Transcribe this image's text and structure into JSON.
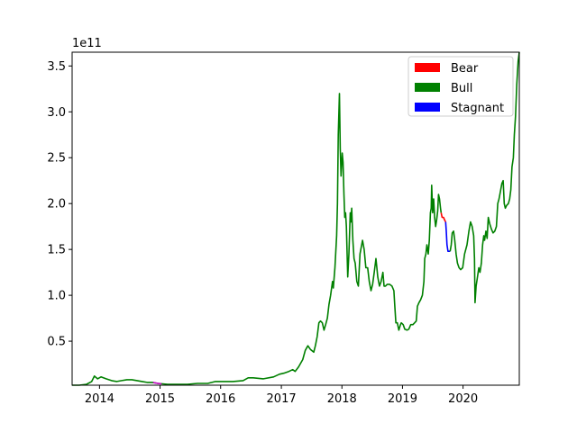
{
  "chart_data": {
    "type": "line",
    "title": "",
    "xlabel": "",
    "ylabel": "",
    "y_offset_label": "1e11",
    "x_tick_labels": [
      "2014",
      "2015",
      "2016",
      "2017",
      "2018",
      "2019",
      "2020"
    ],
    "y_tick_labels": [
      "0.5",
      "1.0",
      "1.5",
      "2.0",
      "2.5",
      "3.0",
      "3.5"
    ],
    "y_ticks": [
      0.5,
      1.0,
      1.5,
      2.0,
      2.5,
      3.0,
      3.5
    ],
    "x_ticks": [
      "2014-01-01",
      "2015-01-01",
      "2016-01-01",
      "2017-01-01",
      "2018-01-01",
      "2019-01-01",
      "2020-01-01"
    ],
    "xlim": [
      "2013-07-20",
      "2020-12-05"
    ],
    "ylim": [
      0.02,
      3.65
    ],
    "y_units": "1e11",
    "grid": false,
    "legend_position": "top-right",
    "legend": [
      {
        "label": "Bear",
        "color": "#ff0000"
      },
      {
        "label": "Bull",
        "color": "#008000"
      },
      {
        "label": "Stagnant",
        "color": "#0000ff"
      }
    ],
    "series": [
      {
        "color": "#008000",
        "points": [
          [
            "2013-07-20",
            0.02
          ],
          [
            "2013-09-01",
            0.02
          ],
          [
            "2013-10-15",
            0.03
          ],
          [
            "2013-11-15",
            0.06
          ],
          [
            "2013-12-01",
            0.12
          ],
          [
            "2013-12-20",
            0.09
          ],
          [
            "2014-01-10",
            0.11
          ],
          [
            "2014-02-10",
            0.09
          ],
          [
            "2014-03-15",
            0.07
          ],
          [
            "2014-04-15",
            0.06
          ],
          [
            "2014-05-15",
            0.07
          ],
          [
            "2014-06-15",
            0.08
          ],
          [
            "2014-07-15",
            0.08
          ],
          [
            "2014-08-15",
            0.07
          ],
          [
            "2014-09-15",
            0.06
          ],
          [
            "2014-10-15",
            0.05
          ],
          [
            "2014-11-15",
            0.05
          ],
          [
            "2014-12-20",
            0.04
          ],
          [
            "2015-02-15",
            0.03
          ],
          [
            "2015-04-15",
            0.03
          ],
          [
            "2015-06-15",
            0.03
          ],
          [
            "2015-08-15",
            0.04
          ],
          [
            "2015-10-15",
            0.04
          ],
          [
            "2015-12-01",
            0.06
          ],
          [
            "2016-01-15",
            0.06
          ],
          [
            "2016-03-15",
            0.06
          ],
          [
            "2016-05-15",
            0.07
          ],
          [
            "2016-06-15",
            0.1
          ],
          [
            "2016-07-15",
            0.1
          ],
          [
            "2016-09-15",
            0.09
          ],
          [
            "2016-11-15",
            0.11
          ],
          [
            "2016-12-20",
            0.14
          ],
          [
            "2017-01-15",
            0.15
          ],
          [
            "2017-02-15",
            0.17
          ],
          [
            "2017-03-10",
            0.19
          ],
          [
            "2017-03-25",
            0.17
          ],
          [
            "2017-04-15",
            0.22
          ],
          [
            "2017-05-10",
            0.3
          ],
          [
            "2017-05-25",
            0.4
          ],
          [
            "2017-06-10",
            0.45
          ],
          [
            "2017-06-25",
            0.41
          ],
          [
            "2017-07-15",
            0.38
          ],
          [
            "2017-07-25",
            0.45
          ],
          [
            "2017-08-05",
            0.55
          ],
          [
            "2017-08-15",
            0.7
          ],
          [
            "2017-08-25",
            0.72
          ],
          [
            "2017-09-05",
            0.7
          ],
          [
            "2017-09-15",
            0.62
          ],
          [
            "2017-09-25",
            0.68
          ],
          [
            "2017-10-05",
            0.75
          ],
          [
            "2017-10-15",
            0.9
          ],
          [
            "2017-10-25",
            1.0
          ],
          [
            "2017-11-05",
            1.15
          ],
          [
            "2017-11-10",
            1.08
          ],
          [
            "2017-11-20",
            1.3
          ],
          [
            "2017-11-30",
            1.65
          ],
          [
            "2017-12-05",
            2.0
          ],
          [
            "2017-12-10",
            2.75
          ],
          [
            "2017-12-17",
            3.2
          ],
          [
            "2017-12-22",
            2.6
          ],
          [
            "2017-12-27",
            2.3
          ],
          [
            "2018-01-03",
            2.55
          ],
          [
            "2018-01-08",
            2.45
          ],
          [
            "2018-01-13",
            2.1
          ],
          [
            "2018-01-18",
            1.85
          ],
          [
            "2018-01-23",
            1.9
          ],
          [
            "2018-01-28",
            1.75
          ],
          [
            "2018-02-05",
            1.2
          ],
          [
            "2018-02-12",
            1.45
          ],
          [
            "2018-02-20",
            1.9
          ],
          [
            "2018-02-25",
            1.8
          ],
          [
            "2018-03-01",
            1.95
          ],
          [
            "2018-03-08",
            1.6
          ],
          [
            "2018-03-15",
            1.4
          ],
          [
            "2018-03-22",
            1.35
          ],
          [
            "2018-04-01",
            1.15
          ],
          [
            "2018-04-10",
            1.1
          ],
          [
            "2018-04-20",
            1.45
          ],
          [
            "2018-05-05",
            1.6
          ],
          [
            "2018-05-15",
            1.5
          ],
          [
            "2018-05-25",
            1.3
          ],
          [
            "2018-06-05",
            1.3
          ],
          [
            "2018-06-15",
            1.15
          ],
          [
            "2018-06-25",
            1.05
          ],
          [
            "2018-07-05",
            1.12
          ],
          [
            "2018-07-15",
            1.25
          ],
          [
            "2018-07-25",
            1.4
          ],
          [
            "2018-08-05",
            1.2
          ],
          [
            "2018-08-15",
            1.1
          ],
          [
            "2018-08-25",
            1.15
          ],
          [
            "2018-09-05",
            1.25
          ],
          [
            "2018-09-12",
            1.1
          ],
          [
            "2018-09-20",
            1.1
          ],
          [
            "2018-10-01",
            1.12
          ],
          [
            "2018-10-15",
            1.12
          ],
          [
            "2018-10-30",
            1.1
          ],
          [
            "2018-11-10",
            1.05
          ],
          [
            "2018-11-15",
            0.9
          ],
          [
            "2018-11-22",
            0.7
          ],
          [
            "2018-12-01",
            0.7
          ],
          [
            "2018-12-10",
            0.62
          ],
          [
            "2018-12-20",
            0.68
          ],
          [
            "2018-12-25",
            0.7
          ],
          [
            "2019-01-05",
            0.68
          ],
          [
            "2019-01-15",
            0.63
          ],
          [
            "2019-01-28",
            0.62
          ],
          [
            "2019-02-08",
            0.63
          ],
          [
            "2019-02-20",
            0.68
          ],
          [
            "2019-03-05",
            0.68
          ],
          [
            "2019-03-15",
            0.7
          ],
          [
            "2019-03-25",
            0.72
          ],
          [
            "2019-04-01",
            0.88
          ],
          [
            "2019-04-10",
            0.92
          ],
          [
            "2019-04-20",
            0.95
          ],
          [
            "2019-05-01",
            1.0
          ],
          [
            "2019-05-10",
            1.15
          ],
          [
            "2019-05-15",
            1.4
          ],
          [
            "2019-05-22",
            1.45
          ],
          [
            "2019-05-28",
            1.55
          ],
          [
            "2019-06-05",
            1.45
          ],
          [
            "2019-06-12",
            1.6
          ],
          [
            "2019-06-18",
            1.9
          ],
          [
            "2019-06-23",
            1.95
          ],
          [
            "2019-06-26",
            2.2
          ],
          [
            "2019-07-02",
            1.9
          ],
          [
            "2019-07-08",
            2.05
          ],
          [
            "2019-07-14",
            1.85
          ],
          [
            "2019-07-20",
            1.75
          ],
          [
            "2019-07-26",
            1.82
          ],
          [
            "2019-08-01",
            1.92
          ],
          [
            "2019-08-06",
            2.1
          ],
          [
            "2019-08-12",
            2.05
          ],
          [
            "2019-08-18",
            1.95
          ],
          [
            "2019-08-22",
            1.9
          ]
        ]
      },
      {
        "color": "#ff0000",
        "points": [
          [
            "2019-08-22",
            1.9
          ],
          [
            "2019-08-28",
            1.85
          ],
          [
            "2019-09-05",
            1.85
          ],
          [
            "2019-09-12",
            1.82
          ],
          [
            "2019-09-18",
            1.8
          ]
        ]
      },
      {
        "color": "#0000ff",
        "points": [
          [
            "2019-09-18",
            1.8
          ],
          [
            "2019-09-22",
            1.7
          ],
          [
            "2019-09-26",
            1.55
          ],
          [
            "2019-10-02",
            1.48
          ],
          [
            "2019-10-15",
            1.48
          ]
        ]
      },
      {
        "color": "#008000",
        "points": [
          [
            "2019-10-15",
            1.48
          ],
          [
            "2019-10-22",
            1.55
          ],
          [
            "2019-10-28",
            1.68
          ],
          [
            "2019-11-05",
            1.7
          ],
          [
            "2019-11-12",
            1.6
          ],
          [
            "2019-11-20",
            1.45
          ],
          [
            "2019-11-28",
            1.35
          ],
          [
            "2019-12-08",
            1.3
          ],
          [
            "2019-12-18",
            1.28
          ],
          [
            "2019-12-30",
            1.3
          ],
          [
            "2020-01-10",
            1.45
          ],
          [
            "2020-01-25",
            1.55
          ],
          [
            "2020-02-05",
            1.7
          ],
          [
            "2020-02-15",
            1.8
          ],
          [
            "2020-02-25",
            1.75
          ],
          [
            "2020-03-05",
            1.65
          ],
          [
            "2020-03-10",
            1.4
          ],
          [
            "2020-03-13",
            0.92
          ],
          [
            "2020-03-20",
            1.1
          ],
          [
            "2020-03-28",
            1.2
          ],
          [
            "2020-04-05",
            1.3
          ],
          [
            "2020-04-12",
            1.25
          ],
          [
            "2020-04-20",
            1.35
          ],
          [
            "2020-04-28",
            1.55
          ],
          [
            "2020-05-05",
            1.65
          ],
          [
            "2020-05-10",
            1.6
          ],
          [
            "2020-05-18",
            1.7
          ],
          [
            "2020-05-25",
            1.62
          ],
          [
            "2020-06-01",
            1.85
          ],
          [
            "2020-06-10",
            1.78
          ],
          [
            "2020-06-20",
            1.72
          ],
          [
            "2020-06-30",
            1.68
          ],
          [
            "2020-07-10",
            1.7
          ],
          [
            "2020-07-20",
            1.75
          ],
          [
            "2020-07-28",
            2.0
          ],
          [
            "2020-08-05",
            2.05
          ],
          [
            "2020-08-15",
            2.15
          ],
          [
            "2020-08-22",
            2.22
          ],
          [
            "2020-08-30",
            2.25
          ],
          [
            "2020-09-05",
            2.0
          ],
          [
            "2020-09-12",
            1.95
          ],
          [
            "2020-09-20",
            1.98
          ],
          [
            "2020-09-30",
            2.0
          ],
          [
            "2020-10-08",
            2.05
          ],
          [
            "2020-10-15",
            2.15
          ],
          [
            "2020-10-22",
            2.4
          ],
          [
            "2020-10-30",
            2.5
          ],
          [
            "2020-11-05",
            2.75
          ],
          [
            "2020-11-12",
            2.95
          ],
          [
            "2020-11-20",
            3.3
          ],
          [
            "2020-11-28",
            3.55
          ],
          [
            "2020-12-05",
            3.65
          ]
        ]
      },
      {
        "color": "#cc00cc",
        "points": [
          [
            "2014-11-20",
            0.05
          ],
          [
            "2014-12-05",
            0.045
          ],
          [
            "2014-12-20",
            0.04
          ],
          [
            "2015-01-10",
            0.035
          ]
        ]
      }
    ]
  }
}
